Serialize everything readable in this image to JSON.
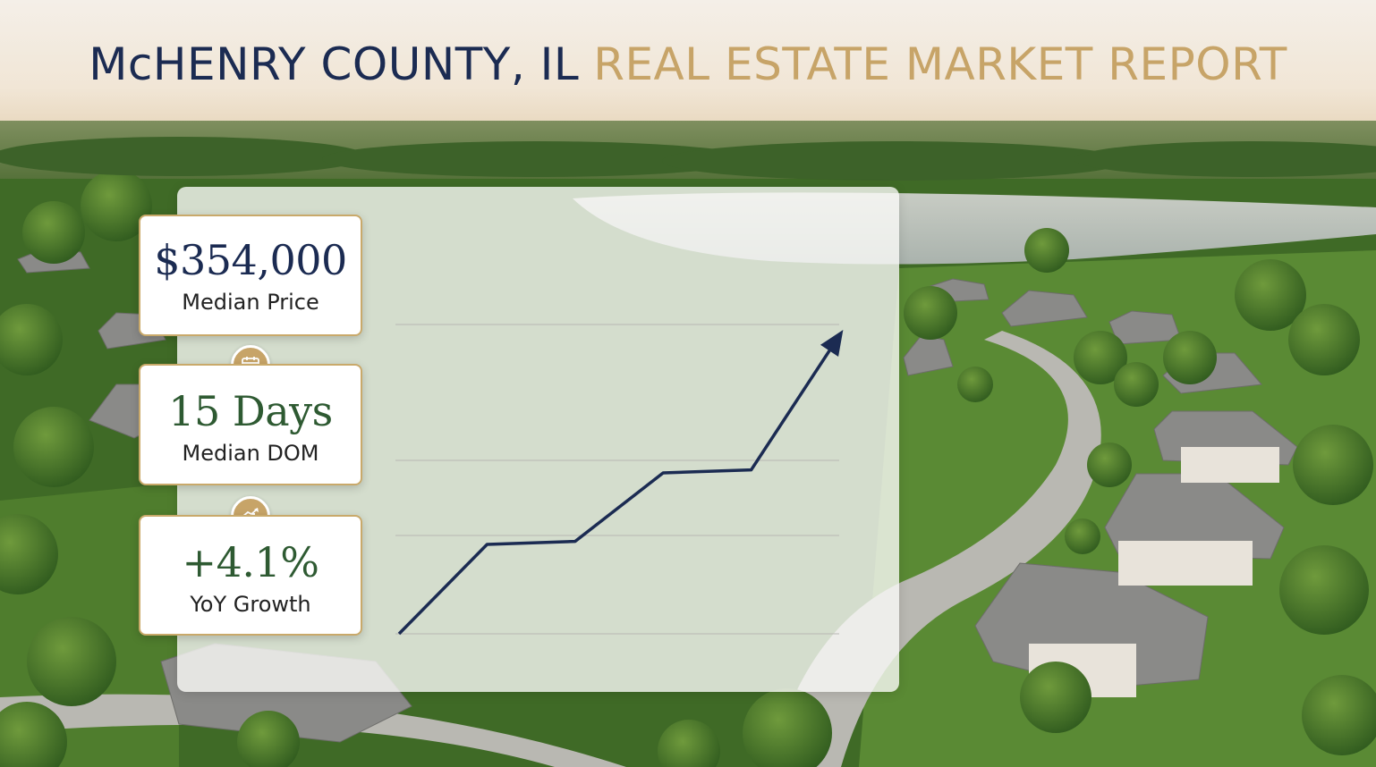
{
  "title": {
    "part1": "McHENRY COUNTY, IL",
    "part2": "REAL ESTATE MARKET REPORT"
  },
  "stats": [
    {
      "value": "$354,000",
      "label": "Median Price"
    },
    {
      "value": "15 Days",
      "label": "Median DOM"
    },
    {
      "value": "+4.1%",
      "label": "YoY Growth"
    }
  ],
  "icons": {
    "days_badge": "calendar-icon",
    "growth_badge": "growth-chart-icon"
  },
  "chart_data": {
    "type": "line",
    "x": [
      0,
      1,
      2,
      3,
      4,
      5
    ],
    "values": [
      0,
      3.0,
      3.1,
      5.4,
      5.5,
      10.0
    ],
    "ylim": [
      0,
      10.5
    ],
    "grid": true,
    "arrow_end": true,
    "title": "",
    "xlabel": "",
    "ylabel": ""
  },
  "colors": {
    "navy": "#1b2b52",
    "gold": "#c7a468",
    "green": "#2e5a32"
  }
}
